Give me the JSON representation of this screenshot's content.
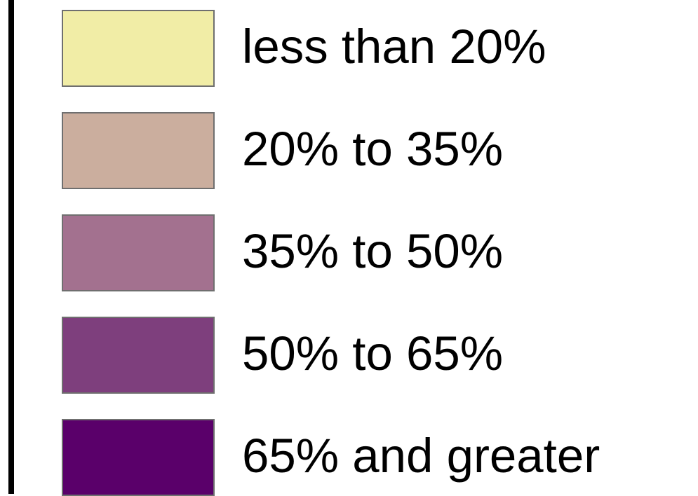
{
  "legend": {
    "items": [
      {
        "label": "less than 20%",
        "color": "#F1EDA6"
      },
      {
        "label": "20% to 35%",
        "color": "#CBAE9E"
      },
      {
        "label": "35% to 50%",
        "color": "#A3718F"
      },
      {
        "label": "50% to 65%",
        "color": "#7E3F7D"
      },
      {
        "label": "65% and greater",
        "color": "#5A006A"
      }
    ]
  }
}
